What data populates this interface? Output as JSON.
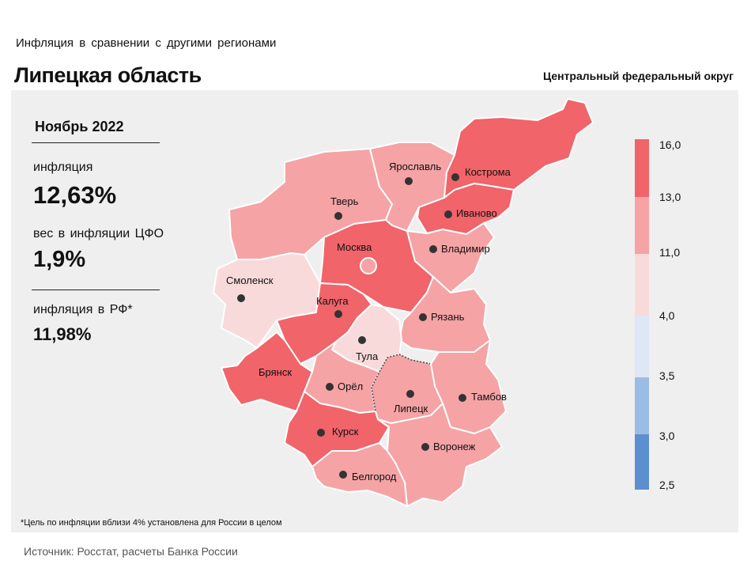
{
  "header": {
    "subtitle": "Инфляция  в сравнении  с другими  регионами",
    "title": "Липецкая область",
    "district": "Центральный федеральный округ"
  },
  "stats": {
    "period": "Ноябрь 2022",
    "inflation_label": "инфляция",
    "inflation_value": "12,63%",
    "weight_label": "вес в инфляции  ЦФО",
    "weight_value": "1,9%",
    "rf_label": "инфляция  в РФ*",
    "rf_value": "11,98%"
  },
  "legend": {
    "ticks": [
      "16,0",
      "13,0",
      "11,0",
      "4,0",
      "3,5",
      "3,0",
      "2,5"
    ],
    "colors": [
      "#f0646a",
      "#f5a3a5",
      "#f9dadb",
      "#dde7f6",
      "#9cbde3",
      "#5b8fcf"
    ]
  },
  "regions": [
    {
      "name": "Ярославль",
      "color": "#f5a3a5"
    },
    {
      "name": "Кострома",
      "color": "#f0646a"
    },
    {
      "name": "Тверь",
      "color": "#f5a3a5"
    },
    {
      "name": "Иваново",
      "color": "#f0646a"
    },
    {
      "name": "Москва",
      "color": "#f0646a"
    },
    {
      "name": "Владимир",
      "color": "#f5a3a5"
    },
    {
      "name": "Смоленск",
      "color": "#f9dadb"
    },
    {
      "name": "Калуга",
      "color": "#f0646a"
    },
    {
      "name": "Рязань",
      "color": "#f5a3a5"
    },
    {
      "name": "Тула",
      "color": "#f9dadb"
    },
    {
      "name": "Брянск",
      "color": "#f0646a"
    },
    {
      "name": "Орёл",
      "color": "#f5a3a5"
    },
    {
      "name": "Липецк",
      "color": "#f5a3a5"
    },
    {
      "name": "Тамбов",
      "color": "#f5a3a5"
    },
    {
      "name": "Курск",
      "color": "#f0646a"
    },
    {
      "name": "Воронеж",
      "color": "#f5a3a5"
    },
    {
      "name": "Белгород",
      "color": "#f5a3a5"
    }
  ],
  "footnote": "*Цель по инфляции вблизи 4% установлена для России в целом",
  "source": "Источник: Росстат, расчеты Банка России"
}
